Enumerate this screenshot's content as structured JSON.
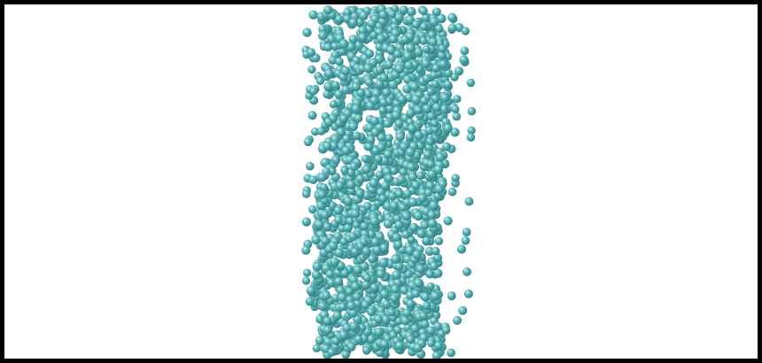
{
  "viewer": {
    "background_color": "#ffffff",
    "frame_color": "#000000"
  },
  "molecule": {
    "representation": "spheres",
    "atom_color": "#5bb3b6",
    "highlight_color": "#c9f3f1",
    "shadow_color": "#2f7f83",
    "orientation": "vertical-slab"
  }
}
